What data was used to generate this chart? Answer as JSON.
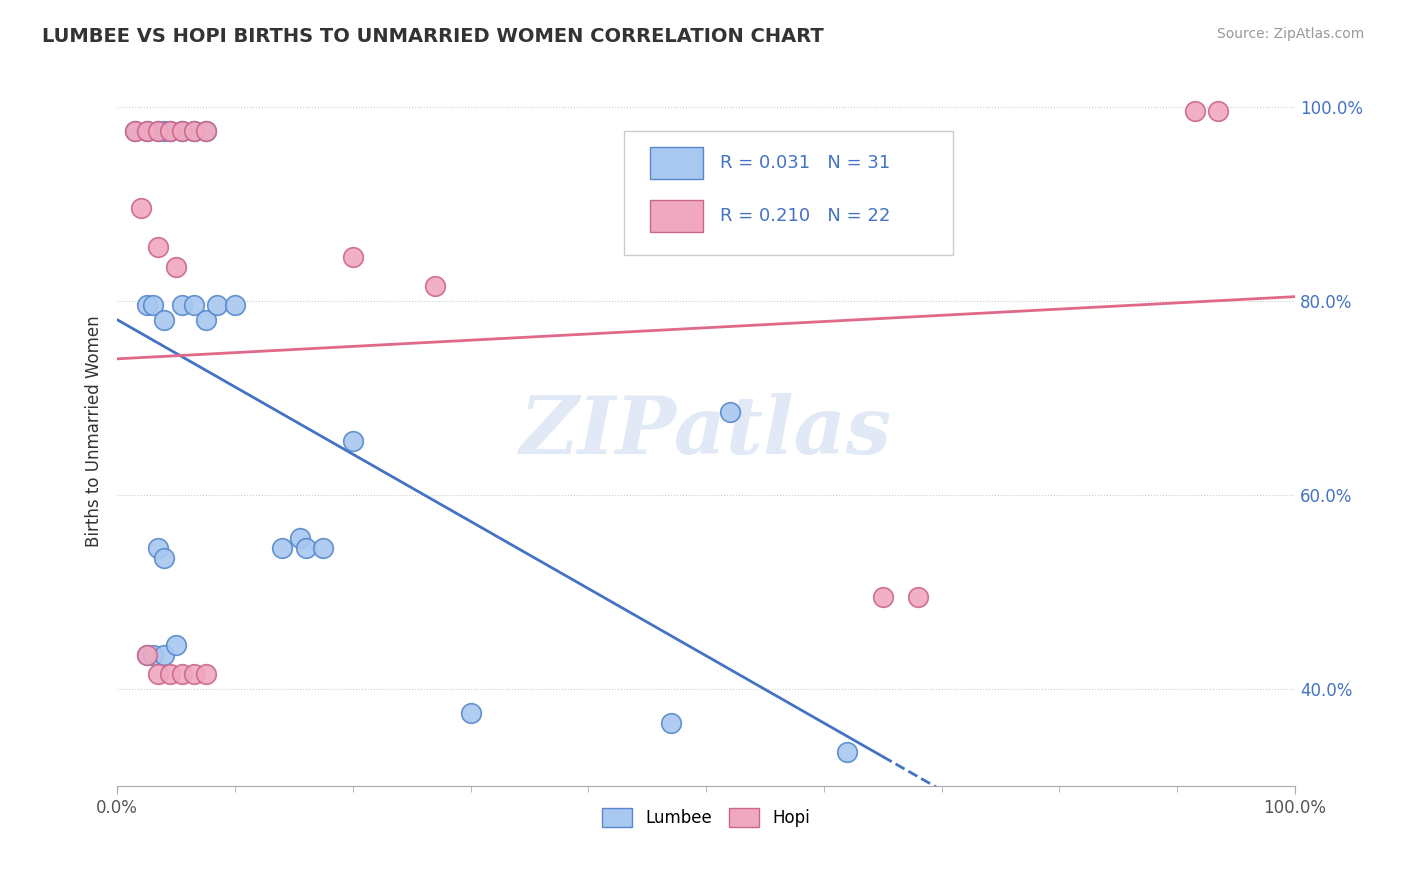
{
  "title": "LUMBEE VS HOPI BIRTHS TO UNMARRIED WOMEN CORRELATION CHART",
  "source": "Source: ZipAtlas.com",
  "xlabel_label": "Lumbee",
  "ylabel_label": "Hopi",
  "ylabel": "Births to Unmarried Women",
  "xlim": [
    0.0,
    1.0
  ],
  "ylim": [
    0.3,
    1.03
  ],
  "xtick_major": [
    0.0,
    1.0
  ],
  "xtick_minor": [
    0.1,
    0.2,
    0.3,
    0.4,
    0.5,
    0.6,
    0.7,
    0.8,
    0.9
  ],
  "ytick_positions": [
    0.4,
    0.6,
    0.8,
    1.0
  ],
  "ytick_labels": [
    "40.0%",
    "60.0%",
    "80.0%",
    "100.0%"
  ],
  "ytick_dotted": [
    0.4,
    0.6,
    0.8,
    1.0
  ],
  "xtick_major_labels": [
    "0.0%",
    "100.0%"
  ],
  "lumbee_color": "#a8c8f0",
  "hopi_color": "#f0a8c0",
  "lumbee_edge": "#5588cc",
  "hopi_edge": "#cc6688",
  "trend_lumbee_color": "#4472c4",
  "trend_hopi_color": "#e06888",
  "R_lumbee": 0.031,
  "N_lumbee": 31,
  "R_hopi": 0.21,
  "N_hopi": 22,
  "watermark": "ZIPatlas",
  "lumbee_x": [
    0.015,
    0.025,
    0.035,
    0.04,
    0.045,
    0.055,
    0.065,
    0.075,
    0.025,
    0.03,
    0.04,
    0.055,
    0.065,
    0.075,
    0.085,
    0.1,
    0.14,
    0.155,
    0.16,
    0.175,
    0.2,
    0.3,
    0.47,
    0.52,
    0.62,
    0.025,
    0.03,
    0.04,
    0.05,
    0.035,
    0.04
  ],
  "lumbee_y": [
    0.975,
    0.975,
    0.975,
    0.975,
    0.975,
    0.975,
    0.975,
    0.975,
    0.795,
    0.795,
    0.78,
    0.795,
    0.795,
    0.78,
    0.795,
    0.795,
    0.545,
    0.555,
    0.545,
    0.545,
    0.655,
    0.375,
    0.365,
    0.685,
    0.335,
    0.435,
    0.435,
    0.435,
    0.445,
    0.545,
    0.535
  ],
  "hopi_x": [
    0.015,
    0.025,
    0.035,
    0.045,
    0.055,
    0.065,
    0.075,
    0.02,
    0.035,
    0.05,
    0.2,
    0.27,
    0.65,
    0.68,
    0.915,
    0.935,
    0.025,
    0.035,
    0.045,
    0.055,
    0.065,
    0.075
  ],
  "hopi_y": [
    0.975,
    0.975,
    0.975,
    0.975,
    0.975,
    0.975,
    0.975,
    0.895,
    0.855,
    0.835,
    0.845,
    0.815,
    0.495,
    0.495,
    0.995,
    0.995,
    0.435,
    0.415,
    0.415,
    0.415,
    0.415,
    0.415
  ]
}
